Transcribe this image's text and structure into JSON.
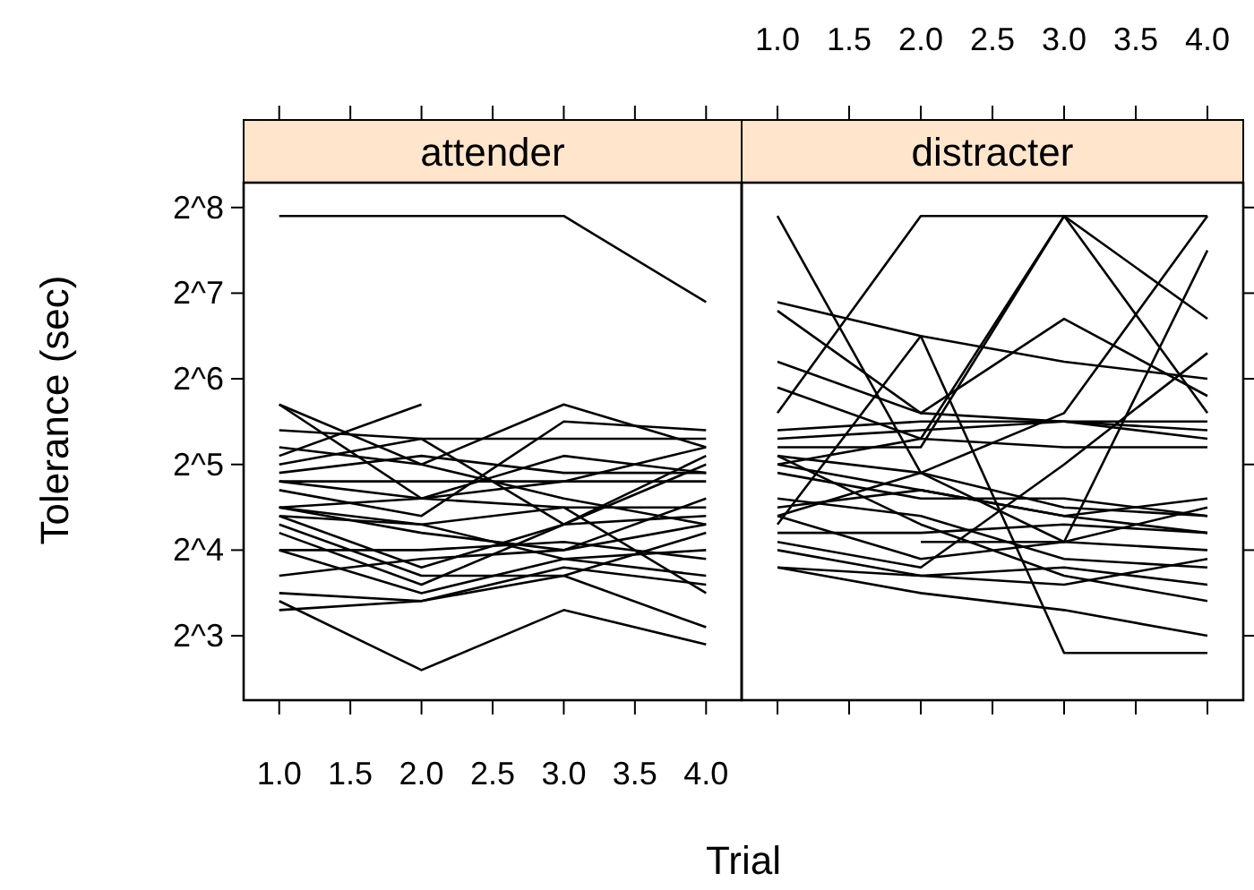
{
  "chart_data": [
    {
      "type": "line",
      "title": "attender",
      "xlabel": "Trial",
      "ylabel": "Tolerance (sec)",
      "log": "y",
      "x": [
        1,
        2,
        3,
        4
      ],
      "xlim": [
        0.75,
        4.25
      ],
      "xticks": [
        {
          "value": 1,
          "label": "1.0"
        },
        1.5,
        {
          "value": 2,
          "label": "2.0"
        },
        2.5,
        {
          "value": 3,
          "label": "3.0"
        },
        3.5,
        {
          "value": 4,
          "label": "4.0"
        }
      ],
      "ylim": [
        4.75,
        313
      ],
      "yticks": [
        {
          "value": 8,
          "label": "2^3"
        },
        {
          "value": 16,
          "label": "2^4"
        },
        {
          "value": 32,
          "label": "2^5"
        },
        {
          "value": 64,
          "label": "2^6"
        },
        {
          "value": 128,
          "label": "2^7"
        },
        {
          "value": 256,
          "label": "2^8"
        }
      ],
      "series": [
        {
          "color": "#000000",
          "values": [
            239,
            239,
            239,
            119
          ]
        },
        {
          "color": "#000000",
          "values": [
            52.0,
            32,
            24.3,
            19.7
          ]
        },
        {
          "color": "#000000",
          "values": [
            52.0,
            24.3,
            22.6,
            11.3
          ]
        },
        {
          "color": "#000000",
          "values": [
            34.3,
            52.0,
            null,
            null
          ]
        },
        {
          "color": "#000000",
          "values": [
            42.2,
            39.4,
            39.4,
            39.4
          ]
        },
        {
          "color": "#000000",
          "values": [
            36.8,
            32,
            52.0,
            36.8
          ]
        },
        {
          "color": "#000000",
          "values": [
            32,
            39.4,
            19.7,
            34.3
          ]
        },
        {
          "color": "#000000",
          "values": [
            27.9,
            24.3,
            34.3,
            29.9
          ]
        },
        {
          "color": "#000000",
          "values": [
            27.9,
            27.9,
            27.9,
            27.9
          ]
        },
        {
          "color": "#000000",
          "values": [
            26.0,
            21.1,
            45.3,
            42.2
          ]
        },
        {
          "color": "#000000",
          "values": [
            22.6,
            19.7,
            22.6,
            22.6
          ]
        },
        {
          "color": "#000000",
          "values": [
            22.6,
            18.4,
            16,
            24.3
          ]
        },
        {
          "color": "#000000",
          "values": [
            21.1,
            13.9,
            19.7,
            32
          ]
        },
        {
          "color": "#000000",
          "values": [
            21.1,
            19.7,
            14.9,
            13.0
          ]
        },
        {
          "color": "#000000",
          "values": [
            18.4,
            12.1,
            19.7,
            21.1
          ]
        },
        {
          "color": "#000000",
          "values": [
            16,
            11.3,
            14.9,
            16
          ]
        },
        {
          "color": "#000000",
          "values": [
            16,
            16,
            17.1,
            14.9
          ]
        },
        {
          "color": "#000000",
          "values": [
            13.0,
            14.9,
            16,
            19.7
          ]
        },
        {
          "color": "#000000",
          "values": [
            11.3,
            10.6,
            13.9,
            12.1
          ]
        },
        {
          "color": "#000000",
          "values": [
            9.85,
            10.6,
            13.0,
            18.4
          ]
        },
        {
          "color": "#000000",
          "values": [
            10.6,
            6.06,
            9.85,
            7.46
          ]
        },
        {
          "color": "#000000",
          "values": [
            19.7,
            13.0,
            13.0,
            8.57
          ]
        },
        {
          "color": "#000000",
          "values": [
            29.9,
            34.3,
            29.9,
            29.9
          ]
        },
        {
          "color": "#000000",
          "values": [
            22.6,
            24.3,
            27.9,
            36.8
          ]
        }
      ]
    },
    {
      "type": "line",
      "title": "distracter",
      "log": "y",
      "tick_labels": "x",
      "x": [
        1,
        2,
        3,
        4
      ],
      "xlim": [
        0.75,
        4.25
      ],
      "xticks": [
        {
          "value": 1,
          "label": "1.0"
        },
        1.5,
        {
          "value": 2,
          "label": "2.0"
        },
        2.5,
        {
          "value": 3,
          "label": "3.0"
        },
        3.5,
        {
          "value": 4,
          "label": "4.0"
        }
      ],
      "ylim": [
        4.75,
        313
      ],
      "yticks": [
        {
          "value": 8,
          "label": null
        },
        {
          "value": 16,
          "label": null
        },
        {
          "value": 32,
          "label": null
        },
        {
          "value": 64,
          "label": null
        },
        {
          "value": 128,
          "label": null
        },
        {
          "value": 256,
          "label": null
        }
      ],
      "series": [
        {
          "color": "#000000",
          "values": [
            48.5,
            239,
            239,
            239
          ]
        },
        {
          "color": "#000000",
          "values": [
            239,
            29.9,
            48.5,
            239
          ]
        },
        {
          "color": "#000000",
          "values": [
            119,
            90.5,
            73.5,
            64
          ]
        },
        {
          "color": "#000000",
          "values": [
            111,
            48.5,
            45.3,
            42.2
          ]
        },
        {
          "color": "#000000",
          "values": [
            73.5,
            48.5,
            104,
            55.7
          ]
        },
        {
          "color": "#000000",
          "values": [
            59.7,
            39.4,
            36.8,
            36.8
          ]
        },
        {
          "color": "#000000",
          "values": [
            39.4,
            42.2,
            45.3,
            45.3
          ]
        },
        {
          "color": "#000000",
          "values": [
            19.7,
            90.5,
            6.96,
            6.96
          ]
        },
        {
          "color": "#000000",
          "values": [
            36.8,
            36.8,
            239,
            48.5
          ]
        },
        {
          "color": "#000000",
          "values": [
            34.3,
            29.9,
            22.6,
            21.1
          ]
        },
        {
          "color": "#000000",
          "values": [
            32,
            26.0,
            21.1,
            18.4
          ]
        },
        {
          "color": "#000000",
          "values": [
            29.9,
            24.3,
            24.3,
            21.1
          ]
        },
        {
          "color": "#000000",
          "values": [
            22.6,
            26.0,
            21.1,
            24.3
          ]
        },
        {
          "color": "#000000",
          "values": [
            21.1,
            29.9,
            17.1,
            181
          ]
        },
        {
          "color": "#000000",
          "values": [
            21.1,
            14.9,
            17.1,
            22.6
          ]
        },
        {
          "color": "#000000",
          "values": [
            18.4,
            18.4,
            19.7,
            18.4
          ]
        },
        {
          "color": "#000000",
          "values": [
            16,
            13.0,
            13.9,
            12.1
          ]
        },
        {
          "color": "#000000",
          "values": [
            13.9,
            11.3,
            9.85,
            8
          ]
        },
        {
          "color": "#000000",
          "values": [
            13.9,
            13.0,
            12.1,
            14.9
          ]
        },
        {
          "color": "#000000",
          "values": [
            17.1,
            13.9,
            32,
            78.8
          ]
        },
        {
          "color": "#000000",
          "values": [
            null,
            17.1,
            17.1,
            16
          ]
        },
        {
          "color": "#000000",
          "values": [
            24.3,
            21.1,
            14.9,
            13.9
          ]
        },
        {
          "color": "#000000",
          "values": [
            42.2,
            45.3,
            45.3,
            39.4
          ]
        },
        {
          "color": "#000000",
          "values": [
            34.3,
            19.7,
            13.0,
            10.6
          ]
        },
        {
          "color": "#000000",
          "values": [
            32,
            39.4,
            239,
            104
          ]
        }
      ]
    }
  ]
}
